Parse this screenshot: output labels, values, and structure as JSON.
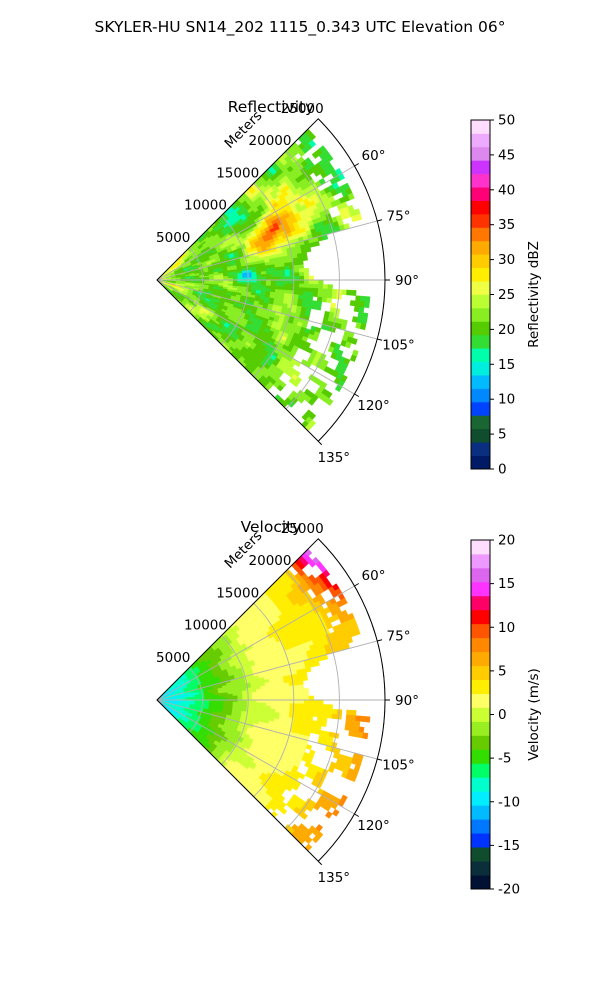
{
  "title": "SKYLER-HU  SN14_202  1115_0.343 UTC Elevation 06°",
  "chart_data": [
    {
      "type": "heatmap",
      "subtype": "polar-sector (radar PPI)",
      "title": "Reflectivity",
      "radial_label": "Meters",
      "radial_ticks": [
        5000,
        10000,
        15000,
        20000,
        25000
      ],
      "radial_tick_labels": [
        "5000",
        "10000",
        "15000",
        "20000",
        "25000"
      ],
      "angle_ticks": [
        60,
        75,
        90,
        105,
        120,
        135
      ],
      "angle_tick_labels": [
        "60°",
        "75°",
        "90°",
        "105°",
        "120°",
        "135°"
      ],
      "azimuth_range_deg": [
        45,
        135
      ],
      "range_max_m": 25000,
      "grid": true,
      "colorbar": {
        "label": "Reflectivity dBZ",
        "range": [
          0,
          50
        ],
        "ticks": [
          0,
          5,
          10,
          15,
          20,
          25,
          30,
          35,
          40,
          45,
          50
        ],
        "tick_labels": [
          "0",
          "5",
          "10",
          "15",
          "20",
          "25",
          "30",
          "35",
          "40",
          "45",
          "50"
        ],
        "colormap": "pyart_NWSRef"
      },
      "field_summary": "values mostly 15–30 dBZ across the sector; core up to ~35–38 dBZ near 65–70° azimuth at 12000–18000 m; ~10–15 dBZ patch near 87° at 8000–11000 m; echo clears beyond ~20000 m at 80–95° azimuth"
    },
    {
      "type": "heatmap",
      "subtype": "polar-sector (radar PPI)",
      "title": "Velocity",
      "radial_label": "Meters",
      "radial_ticks": [
        5000,
        10000,
        15000,
        20000,
        25000
      ],
      "radial_tick_labels": [
        "5000",
        "10000",
        "15000",
        "20000",
        "25000"
      ],
      "angle_ticks": [
        60,
        75,
        90,
        105,
        120,
        135
      ],
      "angle_tick_labels": [
        "60°",
        "75°",
        "90°",
        "105°",
        "120°",
        "135°"
      ],
      "azimuth_range_deg": [
        45,
        135
      ],
      "range_max_m": 25000,
      "grid": true,
      "colorbar": {
        "label": "Velocity (m/s)",
        "range": [
          -20,
          20
        ],
        "ticks": [
          -20,
          -15,
          -10,
          -5,
          0,
          5,
          10,
          15,
          20
        ],
        "tick_labels": [
          "-20",
          "-15",
          "-10",
          "-5",
          "0",
          "5",
          "10",
          "15",
          "20"
        ],
        "colormap": "pyart_BuDRd18"
      },
      "field_summary": "about -10 m/s within 3000 m of the radar, rising through -5 m/s to 0–2 m/s beyond ~10000 m; 3–8 m/s at the far range; up to ~15 m/s near 60° azimuth at 23000–25000 m"
    }
  ],
  "colors": {
    "reflectivity_scale": [
      "#001a66",
      "#0a2f80",
      "#0f4d2e",
      "#1a6633",
      "#0044ff",
      "#0088ff",
      "#00bbff",
      "#00eedd",
      "#00ffaa",
      "#33dd33",
      "#55cc00",
      "#88ee22",
      "#bbff33",
      "#eeff44",
      "#ffee00",
      "#ffcc00",
      "#ffaa00",
      "#ff7700",
      "#ff3300",
      "#ff0000",
      "#ff0077",
      "#ff33cc",
      "#cc33ff",
      "#dd88ee",
      "#eeaaff",
      "#ffddff"
    ],
    "velocity_scale": [
      "#001133",
      "#0a2f3a",
      "#0f4d2e",
      "#0033ff",
      "#0077ff",
      "#00bbff",
      "#00eeff",
      "#00ffcc",
      "#00ff66",
      "#33dd00",
      "#66cc00",
      "#99ee22",
      "#ccff33",
      "#ffff66",
      "#ffee00",
      "#ffcc00",
      "#ffaa00",
      "#ff8800",
      "#ff5500",
      "#ff0000",
      "#ff0066",
      "#ff33ff",
      "#dd66ee",
      "#ee99ff",
      "#ffddff"
    ]
  }
}
